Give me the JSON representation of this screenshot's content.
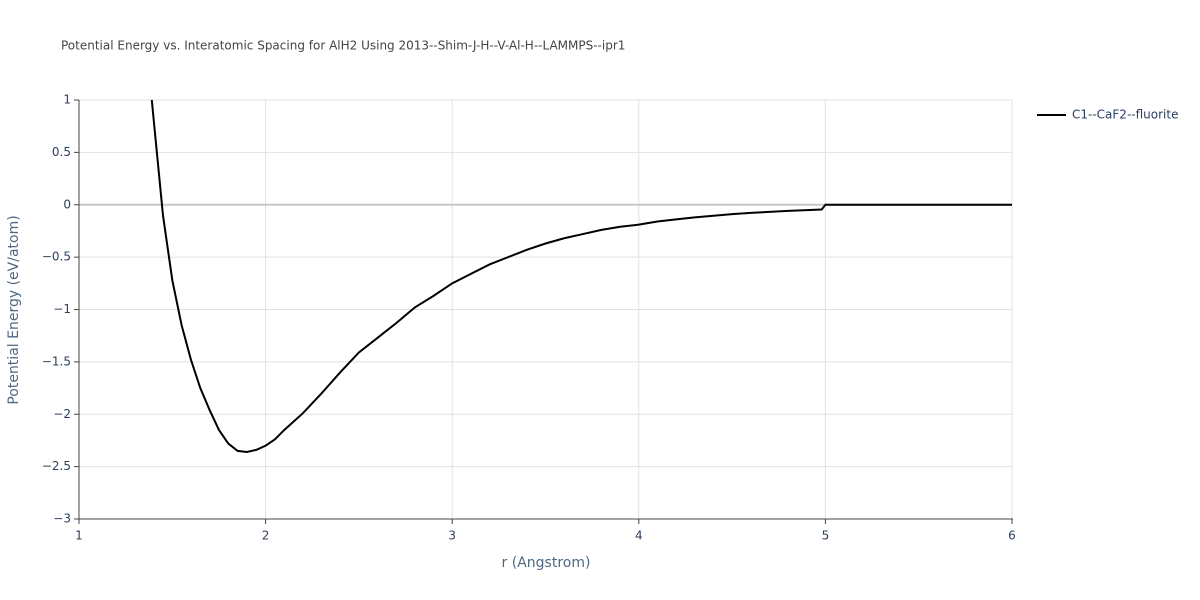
{
  "chart_data": {
    "type": "line",
    "title": "Potential Energy vs. Interatomic Spacing for AlH2 Using 2013--Shim-J-H--V-Al-H--LAMMPS--ipr1",
    "x_label": "r (Angstrom)",
    "y_label": "Potential Energy (eV/atom)",
    "x": [
      1.39,
      1.42,
      1.45,
      1.5,
      1.55,
      1.6,
      1.65,
      1.7,
      1.75,
      1.8,
      1.85,
      1.9,
      1.95,
      2.0,
      2.05,
      2.1,
      2.2,
      2.3,
      2.4,
      2.5,
      2.6,
      2.7,
      2.8,
      2.9,
      3.0,
      3.1,
      3.2,
      3.3,
      3.4,
      3.5,
      3.6,
      3.7,
      3.8,
      3.9,
      4.0,
      4.1,
      4.2,
      4.3,
      4.4,
      4.5,
      4.6,
      4.7,
      4.8,
      4.9,
      4.98,
      5.0,
      5.5,
      6.0
    ],
    "series": [
      {
        "name": "C1--CaF2--fluorite",
        "color": "#000000",
        "values": [
          1.0,
          0.45,
          -0.1,
          -0.72,
          -1.15,
          -1.48,
          -1.75,
          -1.96,
          -2.15,
          -2.28,
          -2.35,
          -2.36,
          -2.34,
          -2.3,
          -2.24,
          -2.15,
          -1.99,
          -1.8,
          -1.6,
          -1.41,
          -1.27,
          -1.13,
          -0.98,
          -0.87,
          -0.75,
          -0.66,
          -0.57,
          -0.5,
          -0.43,
          -0.37,
          -0.32,
          -0.28,
          -0.24,
          -0.21,
          -0.19,
          -0.16,
          -0.14,
          -0.12,
          -0.105,
          -0.09,
          -0.078,
          -0.068,
          -0.059,
          -0.051,
          -0.045,
          0,
          0,
          0
        ]
      }
    ],
    "xlim": [
      1,
      6
    ],
    "ylim": [
      -3,
      1
    ],
    "xticks": [
      1,
      2,
      3,
      4,
      5,
      6
    ],
    "yticks": [
      {
        "value": -3,
        "label": "−3"
      },
      {
        "value": -2.5,
        "label": "−2.5"
      },
      {
        "value": -2,
        "label": "−2"
      },
      {
        "value": -1.5,
        "label": "−1.5"
      },
      {
        "value": -1,
        "label": "−1"
      },
      {
        "value": -0.5,
        "label": "−0.5"
      },
      0,
      0.5,
      1
    ],
    "grid": true,
    "legend": "top-right"
  }
}
